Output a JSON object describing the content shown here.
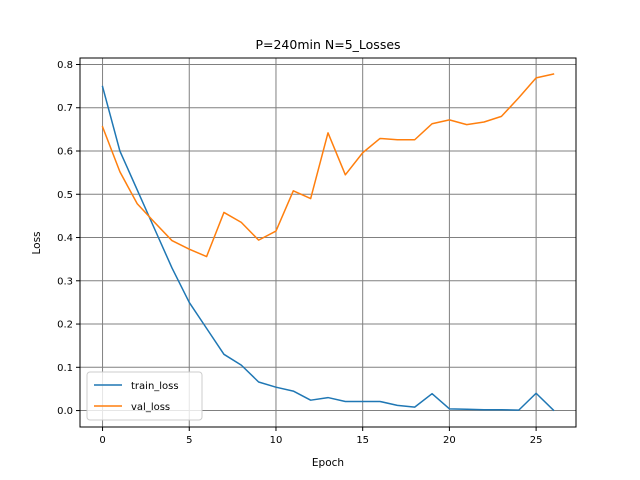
{
  "chart_data": {
    "type": "line",
    "title": "P=240min N=5_Losses",
    "xlabel": "Epoch",
    "ylabel": "Loss",
    "xlim": [
      -1.3,
      27.3
    ],
    "ylim": [
      -0.038,
      0.815
    ],
    "xticks": [
      0,
      5,
      10,
      15,
      20,
      25
    ],
    "yticks": [
      0.0,
      0.1,
      0.2,
      0.3,
      0.4,
      0.5,
      0.6,
      0.7,
      0.8
    ],
    "ytick_labels": [
      "0.0",
      "0.1",
      "0.2",
      "0.3",
      "0.4",
      "0.5",
      "0.6",
      "0.7",
      "0.8"
    ],
    "grid": true,
    "legend_position": "lower-left",
    "x": [
      0,
      1,
      2,
      3,
      4,
      5,
      6,
      7,
      8,
      9,
      10,
      11,
      12,
      13,
      14,
      15,
      16,
      17,
      18,
      19,
      20,
      21,
      22,
      23,
      24,
      25,
      26
    ],
    "series": [
      {
        "name": "train_loss",
        "color": "#1f77b4",
        "values": [
          0.749,
          0.6,
          0.51,
          0.42,
          0.33,
          0.25,
          0.19,
          0.13,
          0.105,
          0.066,
          0.054,
          0.045,
          0.024,
          0.03,
          0.021,
          0.021,
          0.021,
          0.012,
          0.008,
          0.039,
          0.004,
          0.003,
          0.002,
          0.002,
          0.001,
          0.04,
          0.001
        ]
      },
      {
        "name": "val_loss",
        "color": "#ff7f0e",
        "values": [
          0.656,
          0.552,
          0.478,
          0.435,
          0.393,
          0.373,
          0.356,
          0.458,
          0.435,
          0.394,
          0.415,
          0.508,
          0.49,
          0.642,
          0.545,
          0.596,
          0.629,
          0.626,
          0.626,
          0.663,
          0.672,
          0.661,
          0.667,
          0.68,
          0.723,
          0.769,
          0.778
        ]
      }
    ]
  }
}
